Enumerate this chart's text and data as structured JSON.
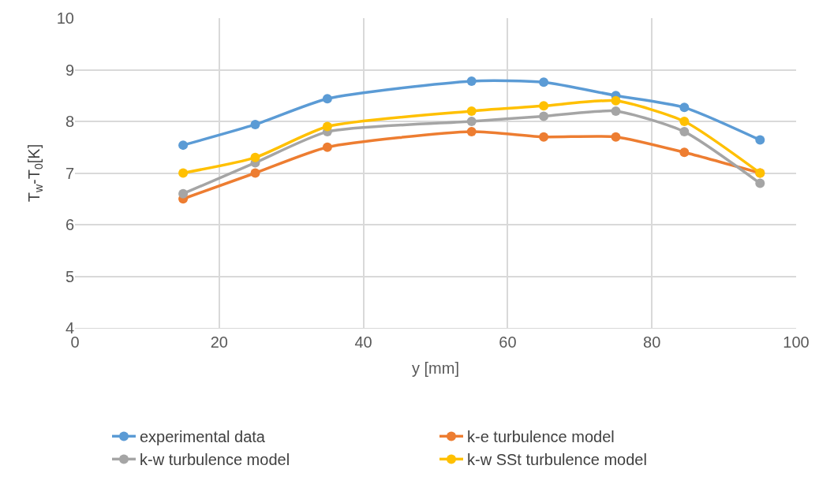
{
  "chart_data": {
    "type": "line",
    "xlabel": "y [mm]",
    "ylabel": "T$_{w}$-T$_{0}$[K]",
    "x": [
      15,
      25,
      35,
      55,
      65,
      75,
      84.5,
      95
    ],
    "series": [
      {
        "name": "experimental data",
        "color": "#5b9bd5",
        "values": [
          7.54,
          7.94,
          8.44,
          8.78,
          8.76,
          8.5,
          8.27,
          7.64
        ]
      },
      {
        "name": "k-e turbulence model",
        "color": "#ed7d31",
        "values": [
          6.5,
          7.0,
          7.5,
          7.8,
          7.7,
          7.7,
          7.4,
          7.0
        ]
      },
      {
        "name": "k-w turbulence model",
        "color": "#a5a5a5",
        "values": [
          6.6,
          7.2,
          7.8,
          8.0,
          8.1,
          8.2,
          7.8,
          6.8
        ]
      },
      {
        "name": "k-w SSt turbulence model",
        "color": "#ffc000",
        "values": [
          7.0,
          7.3,
          7.9,
          8.2,
          8.3,
          8.4,
          8.0,
          7.0
        ]
      }
    ],
    "xlim": [
      0,
      100
    ],
    "xticks": [
      0,
      20,
      40,
      60,
      80,
      100
    ],
    "ylim": [
      4,
      10
    ],
    "yticks": [
      4,
      5,
      6,
      7,
      8,
      9,
      10
    ],
    "grid": true,
    "legend": "bottom",
    "marker": "circle",
    "line_style": "solid"
  }
}
